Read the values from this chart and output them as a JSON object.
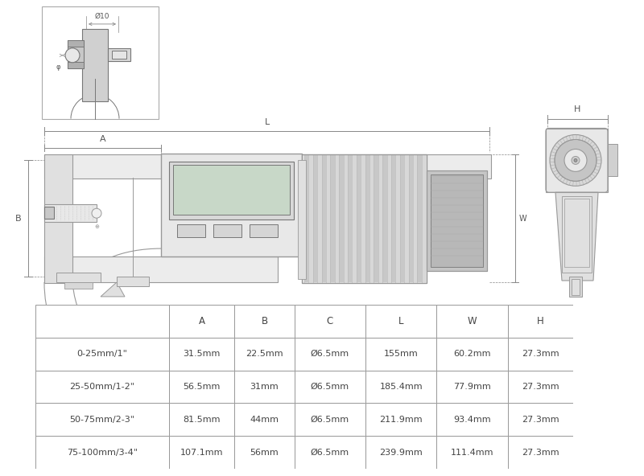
{
  "bg_color": "#ffffff",
  "table_headers": [
    "",
    "A",
    "B",
    "C",
    "L",
    "W",
    "H"
  ],
  "table_rows": [
    [
      "0-25mm/1\"",
      "31.5mm",
      "22.5mm",
      "Ø6.5mm",
      "155mm",
      "60.2mm",
      "27.3mm"
    ],
    [
      "25-50mm/1-2\"",
      "56.5mm",
      "31mm",
      "Ø6.5mm",
      "185.4mm",
      "77.9mm",
      "27.3mm"
    ],
    [
      "50-75mm/2-3\"",
      "81.5mm",
      "44mm",
      "Ø6.5mm",
      "211.9mm",
      "93.4mm",
      "27.3mm"
    ],
    [
      "75-100mm/3-4\"",
      "107.1mm",
      "56mm",
      "Ø6.5mm",
      "239.9mm",
      "111.4mm",
      "27.3mm"
    ]
  ],
  "line_color": "#aaaaaa",
  "drawing_color": "#999999",
  "dark_color": "#777777",
  "text_color": "#555555",
  "dim_color": "#888888"
}
